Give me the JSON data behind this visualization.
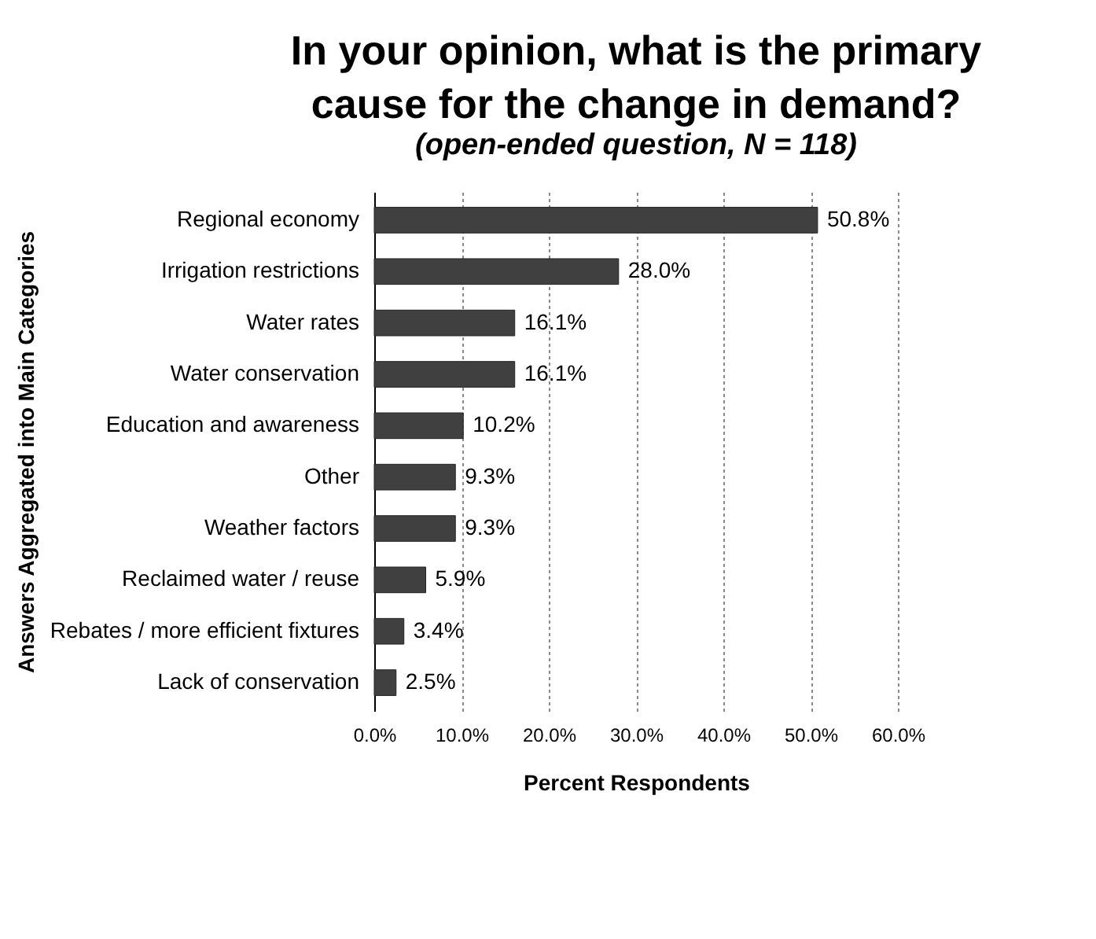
{
  "chart_data": {
    "type": "bar",
    "orientation": "horizontal",
    "title": "In your opinion, what is the primary cause for the change in demand?",
    "subtitle": "(open-ended question, N = 118)",
    "xlabel": "Percent Respondents",
    "ylabel": "Answers Aggregated into Main Categories",
    "categories": [
      "Regional economy",
      "Irrigation restrictions",
      "Water rates",
      "Water conservation",
      "Education and awareness",
      "Other",
      "Weather factors",
      "Reclaimed water / reuse",
      "Rebates / more efficient fixtures",
      "Lack of conservation"
    ],
    "values": [
      50.8,
      28.0,
      16.1,
      16.1,
      10.2,
      9.3,
      9.3,
      5.9,
      3.4,
      2.5
    ],
    "value_labels": [
      "50.8%",
      "28.0%",
      "16.1%",
      "16.1%",
      "10.2%",
      "9.3%",
      "9.3%",
      "5.9%",
      "3.4%",
      "2.5%"
    ],
    "color": "#404040",
    "xlim": [
      0,
      60
    ],
    "xticks": [
      {
        "value": 0,
        "label": "0.0%"
      },
      {
        "value": 10,
        "label": "10.0%"
      },
      {
        "value": 20,
        "label": "20.0%"
      },
      {
        "value": 30,
        "label": "30.0%"
      },
      {
        "value": 40,
        "label": "40.0%"
      },
      {
        "value": 50,
        "label": "50.0%"
      },
      {
        "value": 60,
        "label": "60.0%"
      }
    ],
    "grid": "x"
  }
}
